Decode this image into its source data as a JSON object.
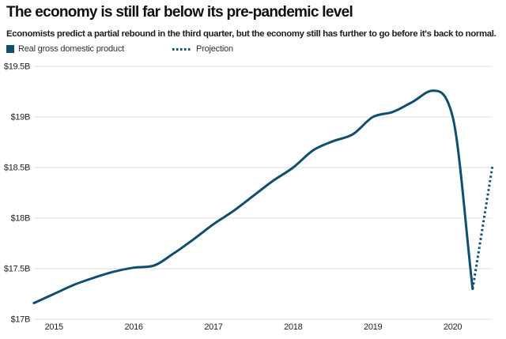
{
  "header": {
    "title": "The economy is still far below its pre-pandemic level",
    "subtitle": "Economists predict a partial rebound in the third quarter, but the economy still has further to go before it's back to normal."
  },
  "legend": {
    "series_label": "Real gross domestic product",
    "projection_label": "Projection"
  },
  "colors": {
    "line": "#114d70",
    "grid": "#dedede",
    "tick_text": "#222222"
  },
  "chart_data": {
    "type": "line",
    "title": "The economy is still far below its pre-pandemic level",
    "xlabel": "",
    "ylabel": "Real gross domestic product",
    "xlim": [
      2014.75,
      2020.5
    ],
    "ylim": [
      17.0,
      19.5
    ],
    "grid": "horizontal",
    "legend_position": "top-left",
    "x_ticks": [
      "2015",
      "2016",
      "2017",
      "2018",
      "2019",
      "2020"
    ],
    "x_tick_values": [
      2015,
      2016,
      2017,
      2018,
      2019,
      2020
    ],
    "y_ticks": [
      {
        "label": "$19.5B",
        "value": 19.5
      },
      {
        "label": "$19B",
        "value": 19.0
      },
      {
        "label": "$18.5B",
        "value": 18.5
      },
      {
        "label": "$18B",
        "value": 18.0
      },
      {
        "label": "$17.5B",
        "value": 17.5
      },
      {
        "label": "$17B",
        "value": 17.0
      }
    ],
    "series": [
      {
        "name": "Real gross domestic product",
        "style": "solid",
        "x": [
          2014.75,
          2015.0,
          2015.25,
          2015.5,
          2015.75,
          2016.0,
          2016.25,
          2016.5,
          2016.75,
          2017.0,
          2017.25,
          2017.5,
          2017.75,
          2018.0,
          2018.25,
          2018.5,
          2018.75,
          2019.0,
          2019.25,
          2019.5,
          2019.75,
          2020.0,
          2020.25
        ],
        "values": [
          17.16,
          17.25,
          17.34,
          17.41,
          17.47,
          17.51,
          17.53,
          17.65,
          17.79,
          17.94,
          18.07,
          18.22,
          18.37,
          18.5,
          18.67,
          18.76,
          18.83,
          19.0,
          19.05,
          19.15,
          19.26,
          19.0,
          17.3
        ]
      },
      {
        "name": "Projection",
        "style": "dotted",
        "x": [
          2020.25,
          2020.5
        ],
        "values": [
          17.3,
          18.52
        ]
      }
    ]
  }
}
